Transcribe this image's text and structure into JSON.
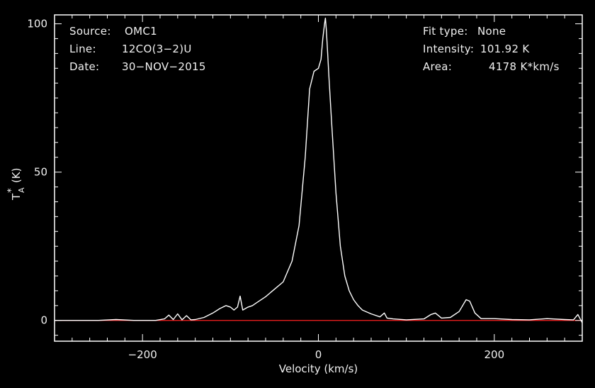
{
  "chart_data": {
    "type": "line",
    "title": "",
    "xlabel": "Velocity (km/s)",
    "ylabel": "T",
    "ylabel_sup": "*",
    "ylabel_sub": "A",
    "ylabel_unit": "(K)",
    "xlim": [
      -300,
      300
    ],
    "ylim": [
      -7,
      103
    ],
    "xticks": [
      -200,
      0,
      200
    ],
    "xtick_labels": [
      "−200",
      "0",
      "200"
    ],
    "yticks": [
      0,
      50,
      100
    ],
    "ytick_labels": [
      "0",
      "50",
      "100"
    ],
    "grid": false,
    "legend": "none",
    "baseline": 0,
    "colors": {
      "background": "#000000",
      "axes": "#ffffff",
      "spectrum": "#ffffff",
      "baseline": "#ff2020"
    },
    "series": [
      {
        "x": [
          -300,
          -250,
          -230,
          -210,
          -185,
          -175,
          -170,
          -165,
          -160,
          -155,
          -150,
          -145,
          -140,
          -130,
          -120,
          -112,
          -105,
          -100,
          -96,
          -92,
          -89,
          -86,
          -83,
          -80,
          -75,
          -70,
          -60,
          -50,
          -40,
          -30,
          -22,
          -15,
          -10,
          -5,
          0,
          3,
          5,
          7,
          8,
          9,
          10,
          12,
          15,
          20,
          25,
          30,
          35,
          40,
          45,
          50,
          60,
          70,
          75,
          78,
          85,
          100,
          120,
          128,
          133,
          140,
          150,
          160,
          165,
          168,
          172,
          178,
          185,
          200,
          220,
          240,
          260,
          280,
          290,
          295,
          300
        ],
        "y": [
          0,
          0,
          0.3,
          0,
          0,
          0.5,
          1.8,
          0.3,
          2.2,
          0.2,
          1.6,
          0.2,
          0.3,
          1,
          2.5,
          4,
          5,
          4.5,
          3.5,
          4.5,
          8.2,
          3.5,
          4,
          4.5,
          5,
          6,
          8,
          10.5,
          13,
          20,
          32,
          55,
          78,
          84,
          85,
          88,
          95,
          100,
          101.9,
          98,
          93,
          82,
          67,
          43,
          25,
          15,
          10,
          7,
          5,
          3.5,
          2.2,
          1.2,
          2.5,
          0.8,
          0.5,
          0.2,
          0.5,
          2,
          2.5,
          0.8,
          1,
          3,
          5.5,
          7,
          6.5,
          2.5,
          0.6,
          0.6,
          0.3,
          0.2,
          0.6,
          0.3,
          0.2,
          2,
          -0.8
        ]
      }
    ]
  },
  "info": {
    "source_label": "Source:",
    "source_value": "OMC1",
    "line_label": "Line:",
    "line_value": "12CO(3−2)U",
    "date_label": "Date:",
    "date_value": "30−NOV−2015",
    "fit_label": "Fit type:",
    "fit_value": "None",
    "intensity_label": "Intensity:",
    "intensity_value": "101.92 K",
    "area_label": "Area:",
    "area_value": "4178 K*km/s"
  }
}
